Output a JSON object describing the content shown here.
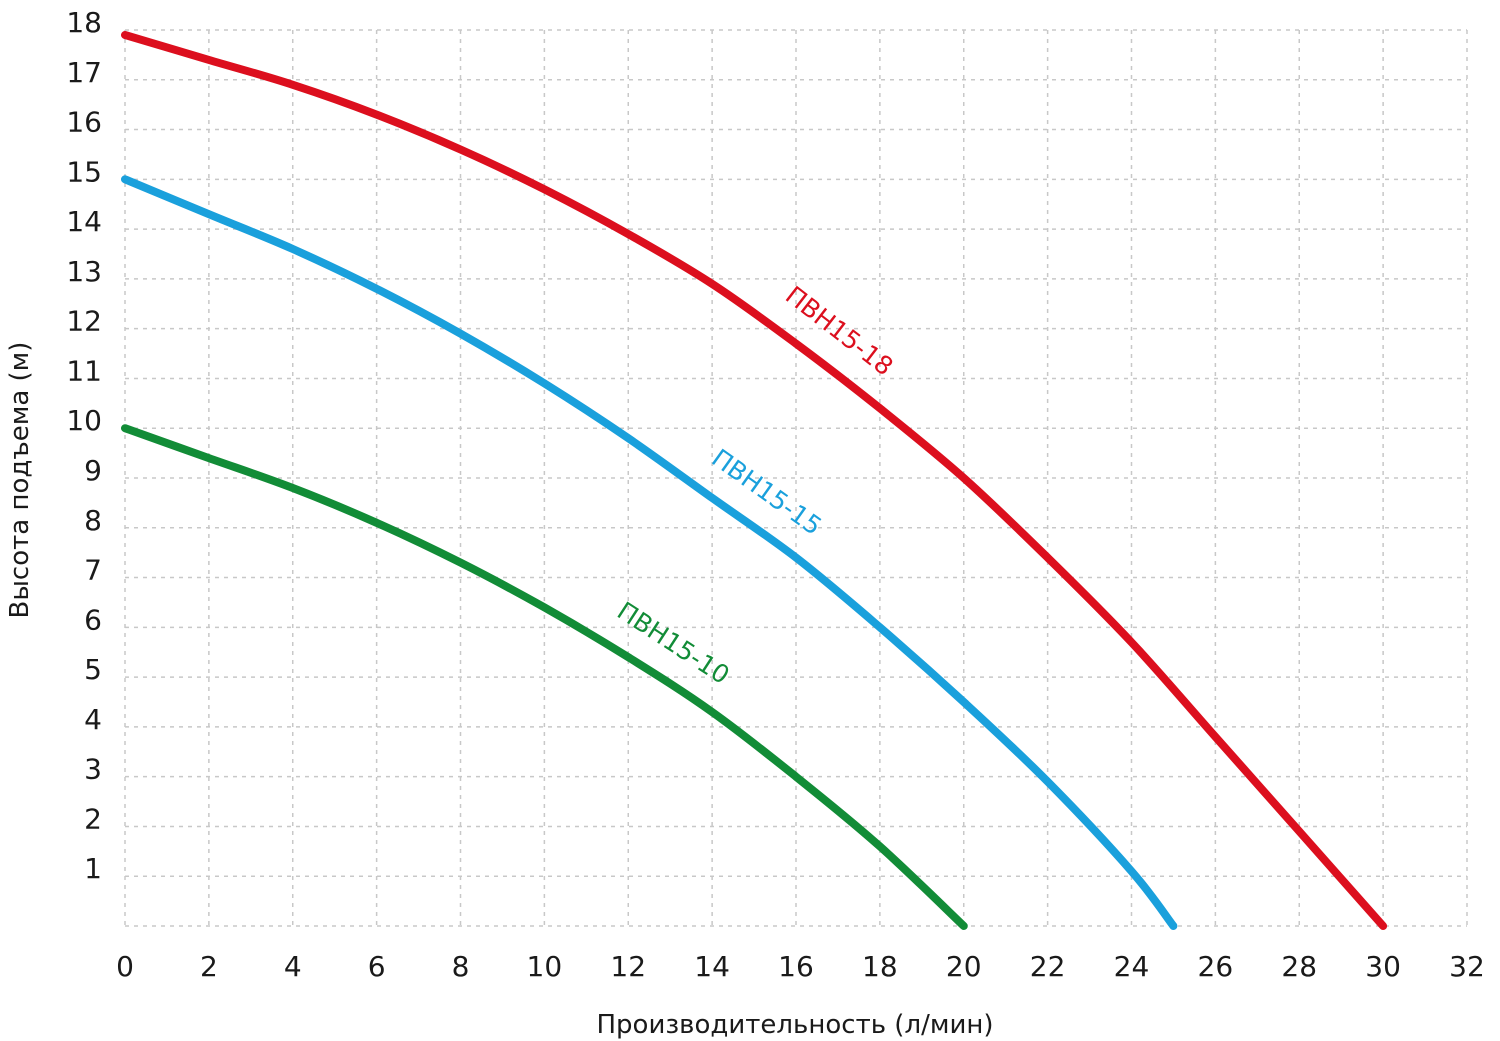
{
  "chart_data": {
    "type": "line",
    "xlabel": "Производительность (л/мин)",
    "ylabel": "Высота подъема (м)",
    "xlim": [
      0,
      32
    ],
    "ylim": [
      0,
      18
    ],
    "xticks": [
      0,
      2,
      4,
      6,
      8,
      10,
      12,
      14,
      16,
      18,
      20,
      22,
      24,
      26,
      28,
      30,
      32
    ],
    "yticks": [
      1,
      2,
      3,
      4,
      5,
      6,
      7,
      8,
      9,
      10,
      11,
      12,
      13,
      14,
      15,
      16,
      17,
      18
    ],
    "grid": true,
    "series": [
      {
        "name": "ПВН15-18",
        "color": "#dc0f1e",
        "x": [
          0,
          2,
          4,
          6,
          8,
          10,
          12,
          14,
          16,
          18,
          20,
          22,
          24,
          26,
          28,
          30
        ],
        "y": [
          17.9,
          17.4,
          16.9,
          16.3,
          15.6,
          14.8,
          13.9,
          12.9,
          11.7,
          10.4,
          9.0,
          7.4,
          5.7,
          3.8,
          1.9,
          0
        ]
      },
      {
        "name": "ПВН15-15",
        "color": "#1aa0dc",
        "x": [
          0,
          2,
          4,
          6,
          8,
          10,
          12,
          14,
          16,
          18,
          20,
          22,
          24,
          25
        ],
        "y": [
          15.0,
          14.3,
          13.6,
          12.8,
          11.9,
          10.9,
          9.8,
          8.6,
          7.4,
          6.0,
          4.5,
          2.9,
          1.1,
          0
        ]
      },
      {
        "name": "ПВН15-10",
        "color": "#128c37",
        "x": [
          0,
          2,
          4,
          6,
          8,
          10,
          12,
          14,
          16,
          18,
          20
        ],
        "y": [
          10.0,
          9.4,
          8.8,
          8.1,
          7.3,
          6.4,
          5.4,
          4.3,
          3.0,
          1.6,
          0
        ]
      }
    ]
  }
}
